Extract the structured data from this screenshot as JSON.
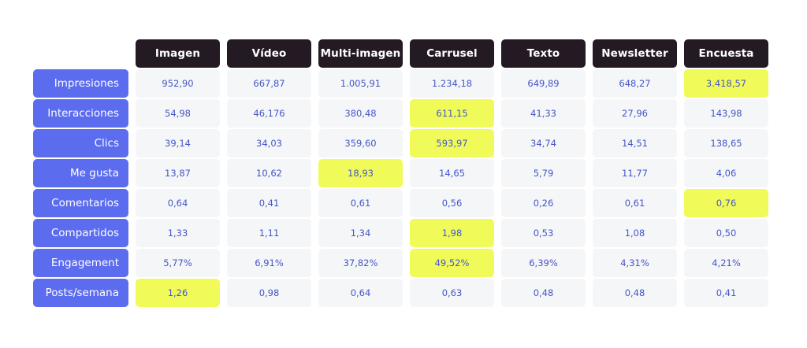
{
  "chart_data": {
    "type": "table",
    "columns": [
      "Imagen",
      "Vídeo",
      "Multi-imagen",
      "Carrusel",
      "Texto",
      "Newsletter",
      "Encuesta"
    ],
    "rows": [
      {
        "label": "Impresiones",
        "values": [
          "952,90",
          "667,87",
          "1.005,91",
          "1.234,18",
          "649,89",
          "648,27",
          "3.418,57"
        ],
        "highlight": [
          false,
          false,
          false,
          false,
          false,
          false,
          true
        ]
      },
      {
        "label": "Interacciones",
        "values": [
          "54,98",
          "46,176",
          "380,48",
          "611,15",
          "41,33",
          "27,96",
          "143,98"
        ],
        "highlight": [
          false,
          false,
          false,
          true,
          false,
          false,
          false
        ]
      },
      {
        "label": "Clics",
        "values": [
          "39,14",
          "34,03",
          "359,60",
          "593,97",
          "34,74",
          "14,51",
          "138,65"
        ],
        "highlight": [
          false,
          false,
          false,
          true,
          false,
          false,
          false
        ]
      },
      {
        "label": "Me gusta",
        "values": [
          "13,87",
          "10,62",
          "18,93",
          "14,65",
          "5,79",
          "11,77",
          "4,06"
        ],
        "highlight": [
          false,
          false,
          true,
          false,
          false,
          false,
          false
        ]
      },
      {
        "label": "Comentarios",
        "values": [
          "0,64",
          "0,41",
          "0,61",
          "0,56",
          "0,26",
          "0,61",
          "0,76"
        ],
        "highlight": [
          false,
          false,
          false,
          false,
          false,
          false,
          true
        ]
      },
      {
        "label": "Compartidos",
        "values": [
          "1,33",
          "1,11",
          "1,34",
          "1,98",
          "0,53",
          "1,08",
          "0,50"
        ],
        "highlight": [
          false,
          false,
          false,
          true,
          false,
          false,
          false
        ]
      },
      {
        "label": "Engagement",
        "values": [
          "5,77%",
          "6,91%",
          "37,82%",
          "49,52%",
          "6,39%",
          "4,31%",
          "4,21%"
        ],
        "highlight": [
          false,
          false,
          false,
          true,
          false,
          false,
          false
        ]
      },
      {
        "label": "Posts/semana",
        "values": [
          "1,26",
          "0,98",
          "0,64",
          "0,63",
          "0,48",
          "0,48",
          "0,41"
        ],
        "highlight": [
          true,
          false,
          false,
          false,
          false,
          false,
          false
        ]
      }
    ]
  },
  "colors": {
    "column_header_bg": "#231a24",
    "row_header_bg": "#5c6cee",
    "cell_bg": "#f4f6f8",
    "cell_text": "#4556c7",
    "highlight_bg": "#f0fb5a"
  }
}
